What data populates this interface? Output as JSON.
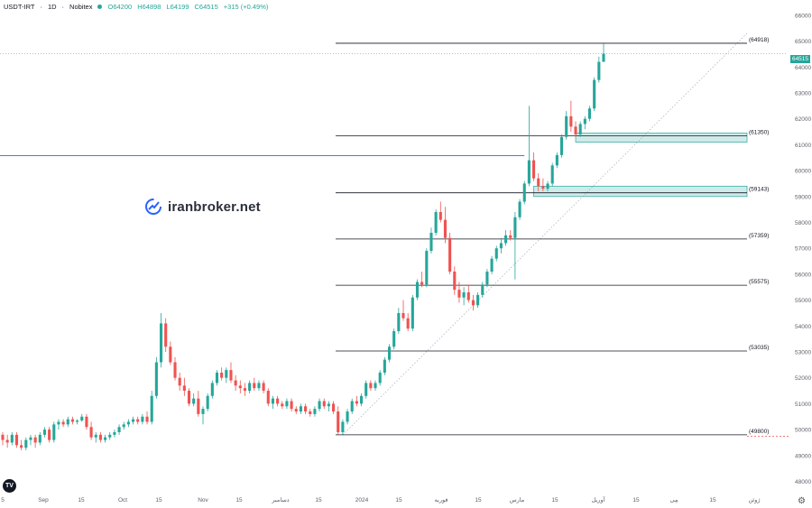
{
  "header": {
    "symbol": "USDT-IRT",
    "interval": "1D",
    "exchange": "Nobitex",
    "open": "O64200",
    "high": "H64898",
    "low": "L64199",
    "close": "C64515",
    "change": "+315 (+0.49%)"
  },
  "current_price": "64515",
  "watermark": "iranbroker.net",
  "tv_logo": "TV",
  "colors": {
    "up": "#26a69a",
    "down": "#ef5350",
    "level": "#131722",
    "zone_fill": "#26a69a",
    "hline": "#2962ff"
  },
  "chart_data": {
    "type": "candlestick",
    "ylim": [
      47600,
      66100
    ],
    "y_ticks": [
      48000,
      49000,
      50000,
      51000,
      52000,
      53000,
      54000,
      55000,
      56000,
      57000,
      58000,
      59000,
      60000,
      61000,
      62000,
      63000,
      64000,
      65000,
      66000
    ],
    "x_ticks": [
      "5",
      "Sep",
      "15",
      "Oct",
      "15",
      "Nov",
      "15",
      "دسامبر",
      "15",
      "2024",
      "15",
      "فوریه",
      "15",
      "مارس",
      "15",
      "آوریل",
      "15",
      "مِی",
      "15",
      "ژوئن"
    ],
    "levels": [
      {
        "label": "(64918)",
        "value": 64918
      },
      {
        "label": "(61350)",
        "value": 61350
      },
      {
        "label": "(59143)",
        "value": 59143
      },
      {
        "label": "(57359)",
        "value": 57359
      },
      {
        "label": "(55575)",
        "value": 55575
      },
      {
        "label": "(53035)",
        "value": 53035
      },
      {
        "label": "(49800)",
        "value": 49800
      }
    ],
    "zones": [
      {
        "from": 61100,
        "to": 61450
      },
      {
        "from": 59000,
        "to": 59400
      }
    ],
    "horizontal_line": 60580,
    "last_price_line": 64515,
    "dashed_level": 49800,
    "candles": [
      [
        49800,
        49900,
        49400,
        49600
      ],
      [
        49600,
        49800,
        49300,
        49500
      ],
      [
        49500,
        49900,
        49400,
        49800
      ],
      [
        49800,
        49900,
        49300,
        49400
      ],
      [
        49400,
        49600,
        49200,
        49300
      ],
      [
        49300,
        49700,
        49200,
        49600
      ],
      [
        49600,
        49800,
        49400,
        49700
      ],
      [
        49700,
        49800,
        49300,
        49500
      ],
      [
        49500,
        49900,
        49400,
        49800
      ],
      [
        49800,
        50100,
        49700,
        50000
      ],
      [
        50000,
        50100,
        49500,
        49600
      ],
      [
        49600,
        50300,
        49500,
        50200
      ],
      [
        50200,
        50400,
        50000,
        50300
      ],
      [
        50300,
        50400,
        50100,
        50200
      ],
      [
        50200,
        50500,
        50100,
        50400
      ],
      [
        50400,
        50500,
        50200,
        50300
      ],
      [
        50300,
        50400,
        50200,
        50350
      ],
      [
        50350,
        50600,
        50300,
        50500
      ],
      [
        50500,
        50600,
        50000,
        50100
      ],
      [
        50100,
        50300,
        49600,
        49700
      ],
      [
        49700,
        49900,
        49500,
        49800
      ],
      [
        49800,
        49900,
        49500,
        49600
      ],
      [
        49600,
        49800,
        49500,
        49700
      ],
      [
        49700,
        49900,
        49600,
        49800
      ],
      [
        49800,
        50000,
        49700,
        49900
      ],
      [
        49900,
        50200,
        49800,
        50100
      ],
      [
        50100,
        50300,
        50000,
        50200
      ],
      [
        50200,
        50400,
        50100,
        50300
      ],
      [
        50300,
        50500,
        50200,
        50400
      ],
      [
        50400,
        50500,
        50200,
        50300
      ],
      [
        50300,
        50600,
        50200,
        50500
      ],
      [
        50500,
        50700,
        50200,
        50300
      ],
      [
        50300,
        51500,
        50200,
        51300
      ],
      [
        51300,
        52800,
        51200,
        52600
      ],
      [
        52600,
        54500,
        52400,
        54100
      ],
      [
        54100,
        54300,
        53000,
        53200
      ],
      [
        53200,
        53400,
        52500,
        52600
      ],
      [
        52600,
        52800,
        51900,
        52000
      ],
      [
        52000,
        52200,
        51500,
        51700
      ],
      [
        51700,
        52000,
        51300,
        51500
      ],
      [
        51500,
        51600,
        50900,
        51000
      ],
      [
        51000,
        51400,
        50900,
        51200
      ],
      [
        51200,
        51500,
        50500,
        50600
      ],
      [
        50600,
        50900,
        50200,
        50800
      ],
      [
        50800,
        51400,
        50700,
        51300
      ],
      [
        51300,
        51900,
        51200,
        51800
      ],
      [
        51800,
        52300,
        51700,
        52200
      ],
      [
        52200,
        52400,
        51900,
        52000
      ],
      [
        52000,
        52400,
        51800,
        52300
      ],
      [
        52300,
        52600,
        51800,
        51900
      ],
      [
        51900,
        52100,
        51500,
        51700
      ],
      [
        51700,
        51900,
        51400,
        51600
      ],
      [
        51600,
        51800,
        51300,
        51500
      ],
      [
        51500,
        51900,
        51400,
        51800
      ],
      [
        51800,
        52000,
        51500,
        51600
      ],
      [
        51600,
        51900,
        51500,
        51800
      ],
      [
        51800,
        51900,
        51400,
        51500
      ],
      [
        51500,
        51600,
        50900,
        51000
      ],
      [
        51000,
        51300,
        50800,
        51200
      ],
      [
        51200,
        51300,
        50900,
        51000
      ],
      [
        51000,
        51100,
        50800,
        50900
      ],
      [
        50900,
        51200,
        50800,
        51100
      ],
      [
        51100,
        51200,
        50700,
        50800
      ],
      [
        50800,
        50900,
        50600,
        50700
      ],
      [
        50700,
        51000,
        50600,
        50900
      ],
      [
        50900,
        51000,
        50600,
        50700
      ],
      [
        50700,
        50800,
        50500,
        50600
      ],
      [
        50600,
        50900,
        50500,
        50800
      ],
      [
        50800,
        51200,
        50700,
        51100
      ],
      [
        51100,
        51200,
        50800,
        50900
      ],
      [
        50900,
        51100,
        50700,
        51000
      ],
      [
        51000,
        51100,
        50600,
        50700
      ],
      [
        50700,
        50900,
        49800,
        49900
      ],
      [
        49900,
        50400,
        49800,
        50300
      ],
      [
        50300,
        50800,
        50200,
        50700
      ],
      [
        50700,
        51200,
        50600,
        51100
      ],
      [
        51100,
        51300,
        50900,
        51000
      ],
      [
        51000,
        51400,
        50900,
        51300
      ],
      [
        51300,
        51900,
        51200,
        51800
      ],
      [
        51800,
        51900,
        51500,
        51600
      ],
      [
        51600,
        51900,
        51500,
        51800
      ],
      [
        51800,
        52300,
        51700,
        52200
      ],
      [
        52200,
        52800,
        52100,
        52700
      ],
      [
        52700,
        53300,
        52600,
        53200
      ],
      [
        53200,
        53900,
        53100,
        53800
      ],
      [
        53800,
        54700,
        53700,
        54500
      ],
      [
        54500,
        55000,
        54200,
        54300
      ],
      [
        54300,
        54500,
        53800,
        53900
      ],
      [
        53900,
        55200,
        53800,
        55100
      ],
      [
        55100,
        55800,
        55000,
        55700
      ],
      [
        55700,
        56100,
        55500,
        55600
      ],
      [
        55600,
        57000,
        55500,
        56900
      ],
      [
        56900,
        57800,
        56800,
        57600
      ],
      [
        57600,
        58500,
        57500,
        58400
      ],
      [
        58400,
        58800,
        58000,
        58100
      ],
      [
        58100,
        58600,
        57200,
        57400
      ],
      [
        57400,
        57600,
        56000,
        56100
      ],
      [
        56100,
        56300,
        55200,
        55400
      ],
      [
        55400,
        55700,
        54900,
        55100
      ],
      [
        55100,
        55500,
        54800,
        55300
      ],
      [
        55300,
        55600,
        54900,
        55000
      ],
      [
        55000,
        55200,
        54600,
        54800
      ],
      [
        54800,
        55300,
        54700,
        55200
      ],
      [
        55200,
        55700,
        55100,
        55600
      ],
      [
        55600,
        56200,
        55500,
        56100
      ],
      [
        56100,
        56700,
        56000,
        56600
      ],
      [
        56600,
        57100,
        56500,
        57000
      ],
      [
        57000,
        57400,
        56800,
        57200
      ],
      [
        57200,
        57700,
        57100,
        57500
      ],
      [
        57500,
        57700,
        57300,
        57400
      ],
      [
        57400,
        58400,
        55800,
        58200
      ],
      [
        58200,
        58900,
        58100,
        58800
      ],
      [
        58800,
        59600,
        58700,
        59500
      ],
      [
        59500,
        62500,
        59400,
        60400
      ],
      [
        60400,
        60700,
        59600,
        59700
      ],
      [
        59700,
        59900,
        59200,
        59400
      ],
      [
        59400,
        59700,
        59200,
        59300
      ],
      [
        59300,
        59600,
        59200,
        59500
      ],
      [
        59500,
        60300,
        59400,
        60200
      ],
      [
        60200,
        60700,
        60100,
        60600
      ],
      [
        60600,
        61400,
        60500,
        61300
      ],
      [
        61300,
        62300,
        61200,
        62100
      ],
      [
        62100,
        62700,
        61500,
        61700
      ],
      [
        61700,
        61900,
        61300,
        61400
      ],
      [
        61400,
        61900,
        61300,
        61800
      ],
      [
        61800,
        62100,
        61600,
        62000
      ],
      [
        62000,
        62500,
        61900,
        62400
      ],
      [
        62400,
        63600,
        62300,
        63500
      ],
      [
        63500,
        64400,
        63400,
        64200
      ],
      [
        64200,
        64898,
        64199,
        64515
      ]
    ]
  }
}
